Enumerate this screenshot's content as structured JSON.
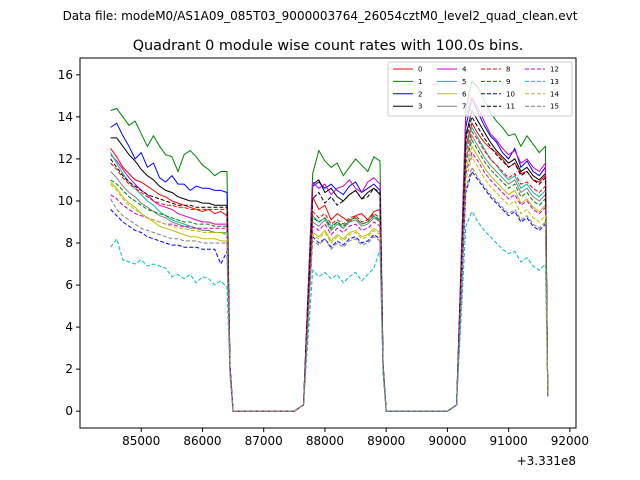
{
  "chart_data": {
    "type": "line",
    "suptitle": "Data file: modeM0/AS1A09_085T03_9000003764_26054cztM0_level2_quad_clean.evt",
    "title": "Quadrant 0 module wise count rates with 100.0s bins.",
    "xlabel": "",
    "ylabel": "",
    "x_offset_label": "+3.331e8",
    "xlim": [
      84000,
      92100
    ],
    "ylim": [
      -0.8,
      16.8
    ],
    "xticks": [
      85000,
      86000,
      87000,
      88000,
      89000,
      90000,
      91000,
      92000
    ],
    "xtick_labels": [
      "85000",
      "86000",
      "87000",
      "88000",
      "89000",
      "90000",
      "91000",
      "92000"
    ],
    "yticks": [
      0,
      2,
      4,
      6,
      8,
      10,
      12,
      14,
      16
    ],
    "ytick_labels": [
      "0",
      "2",
      "4",
      "6",
      "8",
      "10",
      "12",
      "14",
      "16"
    ],
    "grid": false,
    "legend_position": "top-right",
    "legend_columns": 4,
    "x_segments": [
      [
        84500,
        86400
      ],
      [
        87800,
        88900
      ],
      [
        90300,
        91600
      ]
    ],
    "series": [
      {
        "name": "0",
        "color": "#ff0000",
        "style": "solid",
        "values": [
          [
            12.5,
            12.1,
            11.6,
            11.3,
            11.0,
            10.9,
            10.7,
            10.5,
            10.3,
            10.2,
            10.0,
            9.9,
            9.8,
            9.7,
            9.6,
            9.5,
            9.6,
            9.4,
            9.5,
            9.3
          ],
          [
            10.2,
            9.6,
            9.8,
            9.1,
            9.4,
            9.2,
            9.0,
            9.3,
            9.4,
            9.1,
            9.5,
            9.6
          ],
          [
            12.6,
            13.7,
            13.2,
            12.8,
            12.5,
            12.3,
            12.0,
            11.6,
            11.8,
            11.3,
            11.4,
            11.0,
            10.9,
            11.2
          ]
        ]
      },
      {
        "name": "1",
        "color": "#008000",
        "style": "solid",
        "values": [
          [
            14.3,
            14.4,
            14.0,
            13.6,
            13.8,
            13.2,
            12.6,
            13.1,
            12.6,
            12.2,
            12.1,
            11.4,
            12.2,
            12.4,
            12.1,
            11.7,
            11.5,
            11.2,
            11.4,
            11.4
          ],
          [
            11.3,
            12.4,
            11.9,
            11.6,
            11.8,
            11.2,
            11.6,
            12.0,
            11.7,
            11.4,
            12.1,
            11.9
          ],
          [
            14.4,
            15.7,
            15.4,
            14.8,
            14.2,
            13.8,
            13.5,
            13.1,
            13.2,
            12.6,
            13.1,
            12.7,
            12.3,
            12.6
          ]
        ]
      },
      {
        "name": "2",
        "color": "#0000ff",
        "style": "solid",
        "values": [
          [
            13.5,
            13.7,
            13.1,
            12.6,
            12.0,
            12.3,
            11.6,
            11.8,
            11.1,
            10.9,
            11.2,
            10.8,
            10.8,
            10.5,
            10.7,
            10.6,
            10.6,
            10.5,
            10.5,
            10.4
          ],
          [
            10.7,
            10.9,
            10.6,
            10.8,
            10.5,
            10.3,
            10.7,
            10.9,
            10.4,
            10.6,
            10.8,
            10.5
          ],
          [
            13.5,
            14.9,
            14.2,
            13.6,
            13.1,
            12.8,
            12.3,
            12.0,
            12.5,
            11.6,
            11.9,
            11.4,
            11.2,
            11.6
          ]
        ]
      },
      {
        "name": "3",
        "color": "#000000",
        "style": "solid",
        "values": [
          [
            13.0,
            13.0,
            12.6,
            12.2,
            11.9,
            11.5,
            11.2,
            11.0,
            10.7,
            10.5,
            10.4,
            10.2,
            10.1,
            10.0,
            10.0,
            9.9,
            9.9,
            9.8,
            9.8,
            9.8
          ],
          [
            10.8,
            11.0,
            10.4,
            10.6,
            10.2,
            10.0,
            10.3,
            10.5,
            10.1,
            10.4,
            10.6,
            10.3
          ],
          [
            13.1,
            14.3,
            13.8,
            13.3,
            12.8,
            12.4,
            12.1,
            11.8,
            12.0,
            11.4,
            11.6,
            11.2,
            11.0,
            11.3
          ]
        ]
      },
      {
        "name": "4",
        "color": "#cc00cc",
        "style": "solid",
        "values": [
          [
            12.2,
            11.9,
            11.5,
            11.1,
            10.8,
            10.5,
            10.3,
            10.0,
            9.8,
            9.7,
            9.6,
            9.4,
            9.3,
            9.2,
            9.1,
            9.0,
            9.0,
            8.9,
            8.9,
            8.9
          ],
          [
            10.9,
            10.6,
            10.8,
            10.3,
            10.6,
            10.7,
            11.0,
            10.6,
            10.4,
            10.9,
            11.1,
            10.8
          ],
          [
            14.0,
            14.9,
            14.4,
            13.8,
            13.2,
            12.9,
            12.5,
            12.2,
            12.4,
            11.8,
            12.0,
            11.6,
            11.4,
            11.8
          ]
        ]
      },
      {
        "name": "5",
        "color": "#00bfa0",
        "style": "solid",
        "values": [
          [
            12.3,
            11.8,
            11.3,
            10.9,
            10.6,
            10.3,
            10.0,
            9.8,
            9.5,
            9.3,
            9.1,
            9.0,
            8.9,
            8.8,
            8.7,
            8.6,
            8.6,
            8.5,
            8.5,
            8.4
          ],
          [
            9.3,
            9.0,
            9.2,
            8.8,
            9.0,
            8.7,
            9.1,
            9.2,
            8.9,
            9.0,
            9.3,
            9.0
          ],
          [
            12.5,
            13.5,
            13.0,
            12.5,
            12.0,
            11.7,
            11.3,
            11.0,
            11.2,
            10.6,
            10.8,
            10.4,
            10.2,
            10.5
          ]
        ]
      },
      {
        "name": "6",
        "color": "#bfbf00",
        "style": "solid",
        "values": [
          [
            10.9,
            10.6,
            10.2,
            9.9,
            9.7,
            9.4,
            9.2,
            9.0,
            8.8,
            8.7,
            8.6,
            8.5,
            8.4,
            8.3,
            8.3,
            8.2,
            8.2,
            8.2,
            8.1,
            8.1
          ],
          [
            8.5,
            8.3,
            8.6,
            8.1,
            8.4,
            8.2,
            8.5,
            8.6,
            8.3,
            8.4,
            8.7,
            8.5
          ],
          [
            11.5,
            12.6,
            12.1,
            11.6,
            11.2,
            10.9,
            10.6,
            10.3,
            10.5,
            9.9,
            10.1,
            9.7,
            9.5,
            9.8
          ]
        ]
      },
      {
        "name": "7",
        "color": "#808080",
        "style": "solid",
        "values": [
          [
            11.4,
            11.1,
            10.7,
            10.4,
            10.2,
            9.9,
            9.7,
            9.5,
            9.3,
            9.2,
            9.0,
            8.9,
            8.8,
            8.7,
            8.7,
            8.6,
            8.6,
            8.5,
            8.5,
            8.5
          ],
          [
            9.0,
            8.8,
            9.1,
            8.6,
            8.9,
            8.7,
            9.0,
            9.1,
            8.8,
            8.9,
            9.2,
            9.0
          ],
          [
            12.0,
            13.1,
            12.6,
            12.1,
            11.7,
            11.4,
            11.1,
            10.8,
            11.0,
            10.4,
            10.6,
            10.2,
            10.0,
            10.3
          ]
        ]
      },
      {
        "name": "8",
        "color": "#ff0000",
        "style": "dashed",
        "values": [
          [
            11.8,
            11.5,
            11.1,
            10.8,
            10.6,
            10.4,
            10.2,
            10.0,
            9.9,
            9.8,
            9.8,
            9.7,
            9.7,
            9.6,
            9.6,
            9.6,
            9.6,
            9.6,
            9.6,
            9.6
          ],
          [
            9.5,
            9.2,
            9.4,
            8.9,
            9.1,
            8.9,
            9.2,
            9.3,
            9.0,
            9.1,
            9.4,
            9.2
          ],
          [
            12.3,
            13.3,
            12.9,
            12.4,
            12.0,
            11.7,
            11.4,
            11.1,
            11.3,
            10.8,
            10.9,
            10.6,
            10.4,
            10.7
          ]
        ]
      },
      {
        "name": "9",
        "color": "#008000",
        "style": "dashed",
        "values": [
          [
            11.0,
            10.8,
            10.5,
            10.2,
            10.0,
            9.8,
            9.6,
            9.5,
            9.4,
            9.3,
            9.2,
            9.1,
            9.0,
            9.0,
            8.9,
            8.9,
            8.9,
            8.8,
            8.8,
            8.8
          ],
          [
            9.2,
            9.0,
            9.2,
            8.7,
            9.0,
            8.8,
            9.1,
            9.2,
            8.9,
            9.0,
            9.3,
            9.1
          ],
          [
            11.8,
            12.9,
            12.4,
            11.9,
            11.5,
            11.2,
            10.9,
            10.6,
            10.8,
            10.2,
            10.4,
            10.0,
            9.8,
            10.1
          ]
        ]
      },
      {
        "name": "10",
        "color": "#0000ff",
        "style": "dashed",
        "values": [
          [
            9.6,
            9.3,
            9.0,
            8.8,
            8.6,
            8.5,
            8.3,
            8.2,
            8.1,
            8.0,
            7.9,
            7.9,
            7.8,
            7.8,
            7.8,
            7.7,
            7.7,
            7.7,
            7.0,
            7.6
          ],
          [
            8.3,
            8.0,
            8.2,
            7.8,
            8.1,
            7.9,
            8.2,
            8.3,
            8.0,
            8.1,
            8.4,
            8.2
          ],
          [
            10.4,
            11.4,
            11.0,
            10.6,
            10.2,
            9.9,
            9.6,
            9.3,
            9.5,
            9.0,
            9.2,
            8.8,
            8.6,
            8.9
          ]
        ]
      },
      {
        "name": "11",
        "color": "#000000",
        "style": "dashed",
        "values": [
          [
            12.0,
            11.6,
            11.2,
            10.9,
            10.7,
            10.5,
            10.3,
            10.2,
            10.1,
            10.0,
            9.9,
            9.8,
            9.8,
            9.8,
            9.7,
            9.7,
            9.7,
            9.7,
            9.7,
            9.7
          ],
          [
            10.1,
            10.4,
            9.9,
            10.2,
            9.8,
            10.0,
            10.3,
            10.5,
            10.1,
            10.2,
            10.6,
            10.4
          ],
          [
            12.9,
            14.0,
            13.5,
            13.0,
            12.6,
            12.2,
            11.9,
            11.6,
            11.8,
            11.2,
            11.4,
            11.0,
            10.8,
            11.1
          ]
        ]
      },
      {
        "name": "12",
        "color": "#cc00cc",
        "style": "dashed",
        "values": [
          [
            10.3,
            10.1,
            9.8,
            9.6,
            9.4,
            9.3,
            9.2,
            9.1,
            9.0,
            8.9,
            8.9,
            8.8,
            8.8,
            8.8,
            8.7,
            8.7,
            8.7,
            8.7,
            8.7,
            8.7
          ],
          [
            8.8,
            8.6,
            8.9,
            8.4,
            8.7,
            8.5,
            8.8,
            8.9,
            8.6,
            8.7,
            9.0,
            8.8
          ],
          [
            11.3,
            12.3,
            11.9,
            11.4,
            11.0,
            10.7,
            10.4,
            10.1,
            10.3,
            9.8,
            10.0,
            9.6,
            9.4,
            9.7
          ]
        ]
      },
      {
        "name": "13",
        "color": "#00bfbf",
        "style": "dashed",
        "values": [
          [
            7.8,
            8.2,
            7.2,
            7.1,
            7.0,
            7.2,
            6.9,
            7.0,
            6.9,
            6.8,
            6.4,
            6.5,
            6.3,
            6.5,
            6.1,
            6.4,
            6.3,
            6.0,
            6.2,
            5.9
          ],
          [
            6.7,
            6.4,
            6.6,
            6.3,
            6.5,
            6.1,
            6.4,
            6.6,
            6.2,
            6.5,
            6.8,
            7.7
          ],
          [
            8.8,
            9.5,
            9.0,
            8.6,
            8.3,
            8.0,
            7.7,
            7.5,
            7.6,
            7.1,
            7.3,
            6.9,
            6.7,
            7.0
          ]
        ]
      },
      {
        "name": "14",
        "color": "#bfbf00",
        "style": "dashed",
        "values": [
          [
            10.8,
            10.5,
            10.1,
            9.8,
            9.6,
            9.4,
            9.2,
            9.1,
            9.0,
            8.9,
            8.8,
            8.7,
            8.7,
            8.6,
            8.6,
            8.5,
            8.5,
            8.5,
            8.5,
            8.5
          ],
          [
            8.4,
            8.2,
            8.5,
            8.0,
            8.3,
            8.1,
            8.4,
            8.5,
            8.2,
            8.3,
            8.6,
            8.4
          ],
          [
            11.0,
            12.1,
            11.6,
            11.1,
            10.7,
            10.4,
            10.1,
            9.8,
            10.0,
            9.4,
            9.6,
            9.2,
            9.0,
            9.3
          ]
        ]
      },
      {
        "name": "15",
        "color": "#808080",
        "style": "dashed",
        "values": [
          [
            10.1,
            9.6,
            9.3,
            9.1,
            8.9,
            8.7,
            8.6,
            8.5,
            8.4,
            8.3,
            8.2,
            8.2,
            8.1,
            8.1,
            8.1,
            8.0,
            8.0,
            8.0,
            8.0,
            8.0
          ],
          [
            8.1,
            7.9,
            8.2,
            7.7,
            8.0,
            7.8,
            8.1,
            8.2,
            7.9,
            8.0,
            8.3,
            8.1
          ],
          [
            10.6,
            11.6,
            11.1,
            10.7,
            10.3,
            10.0,
            9.7,
            9.4,
            9.6,
            9.1,
            9.3,
            8.9,
            8.7,
            9.0
          ]
        ]
      }
    ]
  }
}
